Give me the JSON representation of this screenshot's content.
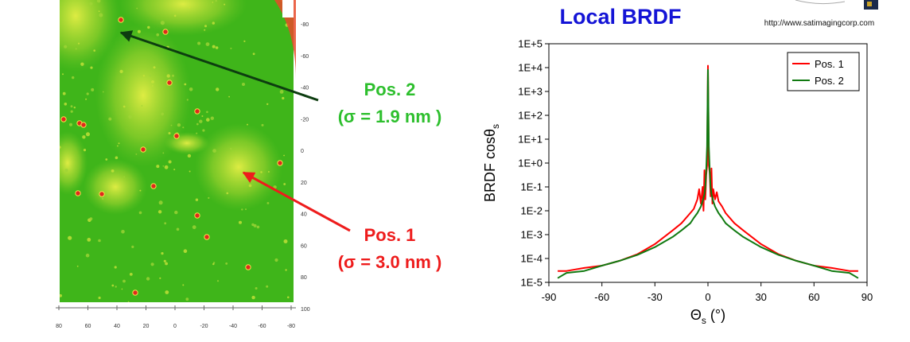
{
  "map": {
    "right_ticks": [
      "-80",
      "-60",
      "-40",
      "-20",
      "0",
      "20",
      "40",
      "60",
      "80",
      "100"
    ],
    "bottom_ticks": [
      "80",
      "60",
      "40",
      "20",
      "0",
      "-20",
      "-40",
      "-60",
      "-80"
    ],
    "colors": {
      "background": "#3fb51a",
      "highlight": "#d8e83a",
      "defect": "#e0281e"
    }
  },
  "annotations": [
    {
      "name": "pos2",
      "line1": "Pos. 2",
      "line2": "(σ = 1.9 nm )",
      "color": "#2dbf2d",
      "arrow_color": "#0d3d10"
    },
    {
      "name": "pos1",
      "line1": "Pos. 1",
      "line2": "(σ = 3.0 nm )",
      "color": "#ee1c1c",
      "arrow_color": "#ee1c1c"
    }
  ],
  "header": {
    "title": "Local BRDF",
    "url": "http://www.satimagingcorp.com"
  },
  "chart_data": {
    "type": "line",
    "title": "Local BRDF",
    "xlabel": "Θs (°)",
    "ylabel": "BRDF cosθs",
    "xlim": [
      -90,
      90
    ],
    "ylim": [
      1e-05,
      100000.0
    ],
    "yscale": "log",
    "x_ticks": [
      -90,
      -60,
      -30,
      0,
      30,
      60,
      90
    ],
    "x_tick_labels": [
      "-90",
      "-60",
      "-30",
      "0",
      "30",
      "60",
      "90"
    ],
    "y_ticks": [
      1e-05,
      0.0001,
      0.001,
      0.01,
      0.1,
      1,
      10,
      100,
      1000,
      10000,
      100000
    ],
    "y_tick_labels": [
      "1E-5",
      "1E-4",
      "1E-3",
      "1E-2",
      "1E-1",
      "1E+0",
      "1E+1",
      "1E+2",
      "1E+3",
      "1E+4",
      "1E+5"
    ],
    "grid": false,
    "legend_position": "top-right",
    "series": [
      {
        "name": "Pos. 1",
        "color": "#ff0000",
        "x": [
          -85,
          -80,
          -70,
          -60,
          -50,
          -40,
          -30,
          -20,
          -15,
          -10,
          -8,
          -6,
          -5,
          -4,
          -3,
          -2.5,
          -2,
          -1.5,
          -1,
          -0.5,
          0,
          0.5,
          1,
          1.5,
          2,
          2.5,
          3,
          4,
          5,
          6,
          8,
          10,
          15,
          20,
          30,
          40,
          50,
          60,
          70,
          80,
          85
        ],
        "y": [
          3e-05,
          3e-05,
          4e-05,
          5e-05,
          8e-05,
          0.00015,
          0.0004,
          0.0015,
          0.003,
          0.008,
          0.012,
          0.03,
          0.08,
          0.02,
          0.1,
          0.01,
          0.5,
          0.03,
          0.3,
          0.8,
          12000,
          0.8,
          0.4,
          0.04,
          0.6,
          0.02,
          0.08,
          0.03,
          0.06,
          0.025,
          0.015,
          0.008,
          0.003,
          0.0015,
          0.0004,
          0.00015,
          8e-05,
          5e-05,
          4e-05,
          3e-05,
          3e-05
        ]
      },
      {
        "name": "Pos. 2",
        "color": "#117a11",
        "x": [
          -85,
          -80,
          -70,
          -60,
          -50,
          -40,
          -30,
          -20,
          -15,
          -10,
          -8,
          -6,
          -4,
          -3,
          -2,
          -1.5,
          -1,
          -0.5,
          0,
          0.5,
          1,
          1.5,
          2,
          3,
          4,
          6,
          8,
          10,
          15,
          20,
          30,
          40,
          50,
          60,
          70,
          80,
          85
        ],
        "y": [
          1.5e-05,
          2.5e-05,
          3e-05,
          5e-05,
          8e-05,
          0.00014,
          0.0003,
          0.0008,
          0.0015,
          0.003,
          0.005,
          0.008,
          0.015,
          0.025,
          0.05,
          0.1,
          0.5,
          5,
          8000,
          5,
          0.5,
          0.1,
          0.05,
          0.025,
          0.015,
          0.008,
          0.005,
          0.003,
          0.0015,
          0.0008,
          0.0003,
          0.00014,
          8e-05,
          5e-05,
          3e-05,
          2.5e-05,
          1.5e-05
        ]
      }
    ]
  }
}
